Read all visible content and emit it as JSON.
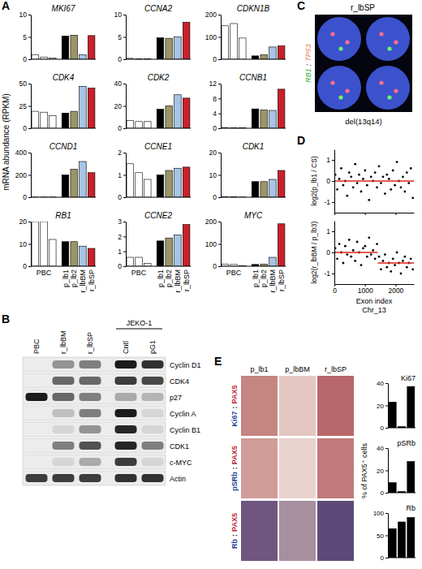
{
  "chart_data": [
    {
      "type": "bar",
      "title": "MKI67",
      "categories": [
        null,
        null,
        null,
        null,
        null,
        null,
        null
      ],
      "values": [
        1.0,
        0.5,
        0.3,
        5.2,
        5.4,
        1.0,
        5.3
      ],
      "colors": [
        "#ffffff",
        "#ffffff",
        "#ffffff",
        "#000000",
        "#9b9568",
        "#a7c4e5",
        "#c9202b"
      ],
      "ylim": [
        0,
        10
      ],
      "yticks": [
        0,
        5,
        10
      ],
      "tick_labels": "y"
    },
    {
      "type": "bar",
      "title": "CCNA2",
      "categories": [
        null,
        null,
        null,
        null,
        null,
        null,
        null
      ],
      "values": [
        0.2,
        0.1,
        0.1,
        4.8,
        4.7,
        5.0,
        8.3
      ],
      "colors": [
        "#ffffff",
        "#ffffff",
        "#ffffff",
        "#000000",
        "#9b9568",
        "#a7c4e5",
        "#c9202b"
      ],
      "ylim": [
        0,
        10
      ],
      "yticks": [
        0,
        5,
        10
      ],
      "tick_labels": "y"
    },
    {
      "type": "bar",
      "title": "CDKN1B",
      "categories": [
        null,
        null,
        null,
        null,
        null,
        null,
        null
      ],
      "values": [
        150,
        160,
        95,
        15,
        20,
        55,
        60
      ],
      "colors": [
        "#ffffff",
        "#ffffff",
        "#ffffff",
        "#000000",
        "#9b9568",
        "#a7c4e5",
        "#c9202b"
      ],
      "ylim": [
        0,
        200
      ],
      "yticks": [
        0,
        100,
        200
      ],
      "tick_labels": "y"
    },
    {
      "type": "bar",
      "title": "CDK4",
      "categories": [
        null,
        null,
        null,
        null,
        null,
        null,
        null
      ],
      "values": [
        19,
        18,
        14,
        17,
        19,
        47,
        45
      ],
      "colors": [
        "#ffffff",
        "#ffffff",
        "#ffffff",
        "#000000",
        "#9b9568",
        "#a7c4e5",
        "#c9202b"
      ],
      "ylim": [
        0,
        50
      ],
      "yticks": [
        0,
        25,
        50
      ],
      "tick_labels": "y"
    },
    {
      "type": "bar",
      "title": "CDK2",
      "categories": [
        null,
        null,
        null,
        null,
        null,
        null,
        null
      ],
      "values": [
        7,
        6,
        6,
        17,
        20,
        30,
        27
      ],
      "colors": [
        "#ffffff",
        "#ffffff",
        "#ffffff",
        "#000000",
        "#9b9568",
        "#a7c4e5",
        "#c9202b"
      ],
      "ylim": [
        0,
        40
      ],
      "yticks": [
        0,
        20,
        40
      ],
      "tick_labels": "y"
    },
    {
      "type": "bar",
      "title": "CCNB1",
      "categories": [
        null,
        null,
        null,
        null,
        null,
        null,
        null
      ],
      "values": [
        0.2,
        0.1,
        0.1,
        5.2,
        4.9,
        4.8,
        10.5
      ],
      "colors": [
        "#ffffff",
        "#ffffff",
        "#ffffff",
        "#000000",
        "#9b9568",
        "#a7c4e5",
        "#c9202b"
      ],
      "ylim": [
        0,
        12
      ],
      "yticks": [
        0,
        4,
        8,
        12
      ],
      "tick_labels": "y"
    },
    {
      "type": "bar",
      "title": "CCND1",
      "categories": [
        null,
        null,
        null,
        null,
        null,
        null,
        null
      ],
      "values": [
        2,
        2,
        2,
        200,
        250,
        320,
        220
      ],
      "colors": [
        "#ffffff",
        "#ffffff",
        "#ffffff",
        "#000000",
        "#9b9568",
        "#a7c4e5",
        "#c9202b"
      ],
      "ylim": [
        0,
        400
      ],
      "yticks": [
        0,
        200,
        400
      ],
      "tick_labels": "y"
    },
    {
      "type": "bar",
      "title": "CCNE1",
      "categories": [
        null,
        null,
        null,
        null,
        null,
        null,
        null
      ],
      "values": [
        1.5,
        1.1,
        0.8,
        1.0,
        1.2,
        1.3,
        1.35
      ],
      "colors": [
        "#ffffff",
        "#ffffff",
        "#ffffff",
        "#000000",
        "#9b9568",
        "#a7c4e5",
        "#c9202b"
      ],
      "ylim": [
        0,
        2
      ],
      "yticks": [
        0,
        1,
        2
      ],
      "tick_labels": "y"
    },
    {
      "type": "bar",
      "title": "CDK1",
      "categories": [
        null,
        null,
        null,
        null,
        null,
        null,
        null
      ],
      "values": [
        0.3,
        0.2,
        0.1,
        7,
        7,
        8,
        12
      ],
      "colors": [
        "#ffffff",
        "#ffffff",
        "#ffffff",
        "#000000",
        "#9b9568",
        "#a7c4e5",
        "#c9202b"
      ],
      "ylim": [
        0,
        20
      ],
      "yticks": [
        0,
        10,
        20
      ],
      "tick_labels": "y"
    },
    {
      "type": "bar",
      "title": "RB1",
      "categories": [
        null,
        "PBC",
        null,
        "p_lb1",
        "p_lb2",
        "r_lbBM",
        "r_lbSP"
      ],
      "values": [
        20,
        20,
        12,
        11,
        11,
        9,
        8
      ],
      "colors": [
        "#ffffff",
        "#ffffff",
        "#ffffff",
        "#000000",
        "#9b9568",
        "#a7c4e5",
        "#c9202b"
      ],
      "ylim": [
        0,
        20
      ],
      "yticks": [
        0,
        10,
        20
      ]
    },
    {
      "type": "bar",
      "title": "CCNE2",
      "categories": [
        null,
        "PBC",
        null,
        "p_lb1",
        "p_lb2",
        "r_lbBM",
        "r_lbSP"
      ],
      "values": [
        0.6,
        0.6,
        0.2,
        1.7,
        1.9,
        2.1,
        2.8
      ],
      "colors": [
        "#ffffff",
        "#ffffff",
        "#ffffff",
        "#000000",
        "#9b9568",
        "#a7c4e5",
        "#c9202b"
      ],
      "ylim": [
        0,
        3
      ],
      "yticks": [
        0,
        1,
        2,
        3
      ]
    },
    {
      "type": "bar",
      "title": "MYC",
      "categories": [
        null,
        "PBC",
        null,
        "p_lb1",
        "p_lb2",
        "r_lbBM",
        "r_lbSP"
      ],
      "values": [
        10,
        8,
        3,
        8,
        10,
        40,
        190
      ],
      "colors": [
        "#ffffff",
        "#ffffff",
        "#ffffff",
        "#000000",
        "#9b9568",
        "#a7c4e5",
        "#c9202b"
      ],
      "ylim": [
        0,
        200
      ],
      "yticks": [
        0,
        100,
        200
      ]
    },
    {
      "type": "scatter",
      "ylabel": "log2(p_lb1 / CS)",
      "xlim": [
        0,
        2600
      ],
      "xticks": [
        0,
        1000,
        2000
      ],
      "ylim": [
        -1.5,
        1.5
      ],
      "yticks": [
        -1,
        0,
        1
      ],
      "tick_labels": "y",
      "series": [
        {
          "type": "scatter",
          "marker": "circle",
          "color": "#000000",
          "x": [
            30,
            95,
            160,
            225,
            290,
            355,
            420,
            485,
            550,
            615,
            680,
            745,
            810,
            875,
            940,
            1005,
            1070,
            1135,
            1200,
            1265,
            1330,
            1395,
            1460,
            1525,
            1590,
            1655,
            1720,
            1785,
            1850,
            1915,
            1980,
            2045,
            2110,
            2175,
            2240,
            2305,
            2370,
            2435,
            2500,
            2565
          ],
          "values": [
            0.3,
            -0.4,
            0.1,
            0.6,
            -0.2,
            0.0,
            -0.7,
            0.4,
            0.2,
            -0.3,
            0.8,
            -0.1,
            0.3,
            -0.5,
            0.1,
            0.5,
            -0.2,
            -0.9,
            0.2,
            0.0,
            0.4,
            -0.3,
            0.7,
            -0.1,
            0.2,
            -0.6,
            0.3,
            0.1,
            -0.4,
            0.5,
            -0.2,
            0.9,
            0.0,
            -0.3,
            0.2,
            -0.5,
            0.4,
            -0.1,
            0.6,
            -0.8
          ]
        },
        {
          "type": "line",
          "color": "#e2231a",
          "x": [
            0,
            2600
          ],
          "values": [
            0,
            0
          ]
        }
      ]
    },
    {
      "type": "scatter",
      "ylabel": "log2(r_lbBM / p_lb3)",
      "xlabel": [
        "Exon index",
        "Chr_13"
      ],
      "xlim": [
        0,
        2600
      ],
      "xticks": [
        0,
        1000,
        2000
      ],
      "ylim": [
        -1.5,
        1.5
      ],
      "yticks": [
        -1,
        0,
        1
      ],
      "series": [
        {
          "type": "scatter",
          "marker": "circle",
          "color": "#000000",
          "x": [
            30,
            95,
            160,
            225,
            290,
            355,
            420,
            485,
            550,
            615,
            680,
            745,
            810,
            875,
            940,
            1005,
            1070,
            1135,
            1200,
            1265,
            1330,
            1395,
            1460,
            1525,
            1590,
            1655,
            1720,
            1785,
            1850,
            1915,
            1980,
            2045,
            2110,
            2175,
            2240,
            2305,
            2370,
            2435,
            2500,
            2565
          ],
          "values": [
            0.2,
            -0.3,
            0.4,
            0.0,
            -0.5,
            0.3,
            -0.1,
            0.6,
            -0.2,
            0.1,
            -0.4,
            0.5,
            0.0,
            -0.6,
            0.2,
            0.3,
            -0.2,
            0.7,
            -0.1,
            0.1,
            -0.3,
            0.4,
            -0.2,
            -0.8,
            -0.4,
            -0.1,
            -0.7,
            -0.5,
            -0.9,
            -0.3,
            -0.6,
            0.0,
            -0.5,
            -1.0,
            -0.4,
            -0.2,
            -0.7,
            -0.5,
            -0.3,
            -0.8
          ]
        },
        {
          "type": "line",
          "color": "#e2231a",
          "x": [
            0,
            1420,
            1420,
            1420,
            2600
          ],
          "values": [
            0,
            0,
            null,
            -0.5,
            -0.5
          ]
        }
      ]
    },
    {
      "type": "bar",
      "title": "Ki67",
      "categories": [
        null,
        null,
        null
      ],
      "values": [
        23,
        1,
        37
      ],
      "color": "#000000",
      "ylim": [
        0,
        40
      ],
      "yticks": [
        0,
        20,
        40
      ],
      "tick_labels": "y"
    },
    {
      "type": "bar",
      "title": "pSRb",
      "categories": [
        null,
        null,
        null
      ],
      "values": [
        9,
        1,
        28
      ],
      "color": "#000000",
      "ylim": [
        0,
        40
      ],
      "yticks": [
        0,
        20,
        40
      ],
      "tick_labels": "y"
    },
    {
      "type": "bar",
      "title": "Rb",
      "categories": [
        null,
        null,
        null
      ],
      "values": [
        65,
        80,
        90
      ],
      "color": "#000000",
      "ylim": [
        0,
        100
      ],
      "yticks": [
        0,
        50,
        100
      ],
      "tick_labels": "y"
    }
  ],
  "panel_labels": [
    "A",
    "B",
    "C",
    "D",
    "E"
  ],
  "panel_a": {
    "ylabel": "mRNA abundance (RPKM)"
  },
  "panel_b": {
    "lanes": [
      "PBC",
      "r_lbBM",
      "r_lbSP",
      "Cntl",
      "pG1"
    ],
    "lane_group": "JEKO-1",
    "rows": [
      {
        "label": "Cyclin D1",
        "bands": [
          0,
          0.4,
          0.5,
          0.95,
          0.85
        ]
      },
      {
        "label": "CDK4",
        "bands": [
          0,
          0.6,
          0.6,
          0.8,
          0.75
        ]
      },
      {
        "label": "p27",
        "bands": [
          0.95,
          0.6,
          0.5,
          0.3,
          0.25
        ]
      },
      {
        "label": "Cyclin A",
        "bands": [
          0,
          0.2,
          0.5,
          0.95,
          0.1
        ]
      },
      {
        "label": "Cyclin B1",
        "bands": [
          0,
          0.1,
          0.4,
          0.9,
          0.1
        ]
      },
      {
        "label": "CDK1",
        "bands": [
          0,
          0.5,
          0.7,
          0.9,
          0.5
        ]
      },
      {
        "label": "c-MYC",
        "bands": [
          0,
          0.1,
          0.3,
          0.8,
          0.1
        ]
      },
      {
        "label": "Actin",
        "bands": [
          0.8,
          0.8,
          0.8,
          0.85,
          0.85
        ]
      }
    ]
  },
  "panel_c": {
    "title": "r_lbSP",
    "probe_label": [
      {
        "text": "RB1",
        "color": "#2fae3a"
      },
      {
        "text": ":",
        "color": "#000000"
      },
      {
        "text": "TP53",
        "color": "#e8825f"
      }
    ],
    "caption": "del(13q14)"
  },
  "panel_e": {
    "columns": [
      "p_lb1",
      "p_lbBM",
      "r_lbSP"
    ],
    "rows": [
      [
        {
          "text": "Ki67",
          "color": "#1f3f93"
        },
        {
          "text": ":",
          "color": "#000000"
        },
        {
          "text": "PAX5",
          "color": "#c0282f"
        }
      ],
      [
        {
          "text": "pSRb",
          "color": "#1f3f93"
        },
        {
          "text": ":",
          "color": "#000000"
        },
        {
          "text": "PAX5",
          "color": "#c0282f"
        }
      ],
      [
        {
          "text": "Rb",
          "color": "#1f3f93"
        },
        {
          "text": ":",
          "color": "#000000"
        },
        {
          "text": "PAX5",
          "color": "#c0282f"
        }
      ]
    ],
    "ylabel": "% of PAX5⁺ cells"
  }
}
